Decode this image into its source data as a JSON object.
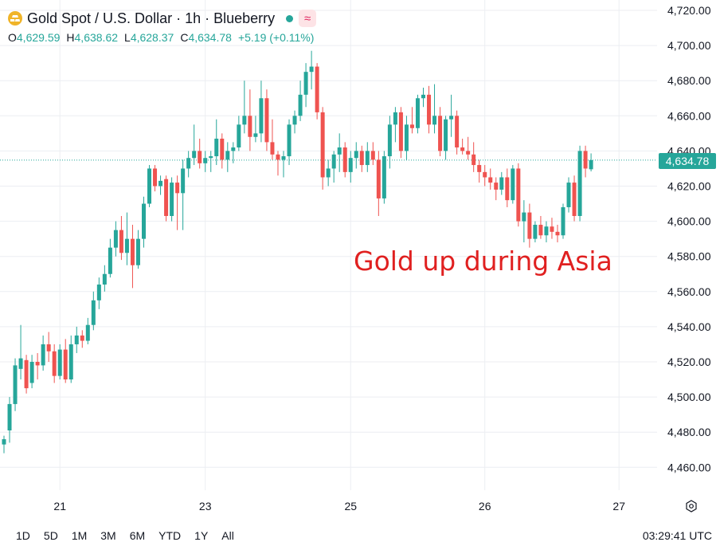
{
  "header": {
    "title": "Gold Spot / U.S. Dollar · 1h · Blueberry",
    "symbol_icon": "gold-bars-icon",
    "status_dot_color": "#26a69a",
    "badge_icon": "wave-icon",
    "ohlc": {
      "o_label": "O",
      "o_value": "4,629.59",
      "h_label": "H",
      "h_value": "4,638.62",
      "l_label": "L",
      "l_value": "4,628.37",
      "c_label": "C",
      "c_value": "4,634.78",
      "change": "+5.19 (+0.11%)"
    }
  },
  "annotation": "Gold up during Asia",
  "price_tag": "4,634.78",
  "footer": {
    "ranges": [
      "1D",
      "5D",
      "1M",
      "3M",
      "6M",
      "YTD",
      "1Y",
      "All"
    ],
    "clock": "03:29:41 UTC"
  },
  "colors": {
    "up": "#26a69a",
    "down": "#ef5350",
    "annotation": "#e02020",
    "grid": "#eceef2"
  },
  "chart_data": {
    "type": "candlestick",
    "title": "Gold Spot / U.S. Dollar · 1h · Blueberry",
    "ylim": [
      4450,
      4725
    ],
    "y_ticks": [
      "4,460.00",
      "4,480.00",
      "4,500.00",
      "4,520.00",
      "4,540.00",
      "4,560.00",
      "4,580.00",
      "4,600.00",
      "4,620.00",
      "4,640.00",
      "4,660.00",
      "4,680.00",
      "4,700.00",
      "4,720.00"
    ],
    "y_tick_values": [
      4460,
      4480,
      4500,
      4520,
      4540,
      4560,
      4580,
      4600,
      4620,
      4640,
      4660,
      4680,
      4700,
      4720
    ],
    "x_ticks": [
      "21",
      "23",
      "25",
      "26",
      "27"
    ],
    "x_tick_index": [
      10,
      36,
      62,
      86,
      110
    ],
    "last_price": 4634.78,
    "grid": true,
    "candles": [
      {
        "o": 4473,
        "h": 4478,
        "l": 4468,
        "c": 4476
      },
      {
        "o": 4481,
        "h": 4500,
        "l": 4474,
        "c": 4496
      },
      {
        "o": 4496,
        "h": 4522,
        "l": 4492,
        "c": 4518
      },
      {
        "o": 4516,
        "h": 4541,
        "l": 4510,
        "c": 4522
      },
      {
        "o": 4521,
        "h": 4524,
        "l": 4502,
        "c": 4505
      },
      {
        "o": 4508,
        "h": 4524,
        "l": 4505,
        "c": 4520
      },
      {
        "o": 4520,
        "h": 4525,
        "l": 4510,
        "c": 4518
      },
      {
        "o": 4518,
        "h": 4535,
        "l": 4515,
        "c": 4530
      },
      {
        "o": 4530,
        "h": 4537,
        "l": 4520,
        "c": 4526
      },
      {
        "o": 4526,
        "h": 4530,
        "l": 4508,
        "c": 4512
      },
      {
        "o": 4512,
        "h": 4530,
        "l": 4510,
        "c": 4527
      },
      {
        "o": 4527,
        "h": 4533,
        "l": 4508,
        "c": 4510
      },
      {
        "o": 4510,
        "h": 4535,
        "l": 4508,
        "c": 4530
      },
      {
        "o": 4530,
        "h": 4540,
        "l": 4525,
        "c": 4535
      },
      {
        "o": 4535,
        "h": 4538,
        "l": 4528,
        "c": 4532
      },
      {
        "o": 4532,
        "h": 4545,
        "l": 4530,
        "c": 4541
      },
      {
        "o": 4541,
        "h": 4560,
        "l": 4538,
        "c": 4555
      },
      {
        "o": 4555,
        "h": 4568,
        "l": 4550,
        "c": 4564
      },
      {
        "o": 4564,
        "h": 4575,
        "l": 4560,
        "c": 4570
      },
      {
        "o": 4570,
        "h": 4590,
        "l": 4568,
        "c": 4585
      },
      {
        "o": 4585,
        "h": 4600,
        "l": 4580,
        "c": 4595
      },
      {
        "o": 4595,
        "h": 4603,
        "l": 4578,
        "c": 4582
      },
      {
        "o": 4582,
        "h": 4605,
        "l": 4575,
        "c": 4590
      },
      {
        "o": 4590,
        "h": 4598,
        "l": 4562,
        "c": 4575
      },
      {
        "o": 4575,
        "h": 4595,
        "l": 4573,
        "c": 4590
      },
      {
        "o": 4590,
        "h": 4614,
        "l": 4585,
        "c": 4610
      },
      {
        "o": 4610,
        "h": 4632,
        "l": 4608,
        "c": 4630
      },
      {
        "o": 4630,
        "h": 4632,
        "l": 4617,
        "c": 4620
      },
      {
        "o": 4620,
        "h": 4626,
        "l": 4615,
        "c": 4623
      },
      {
        "o": 4624,
        "h": 4626,
        "l": 4600,
        "c": 4603
      },
      {
        "o": 4603,
        "h": 4625,
        "l": 4600,
        "c": 4622
      },
      {
        "o": 4622,
        "h": 4626,
        "l": 4595,
        "c": 4616
      },
      {
        "o": 4616,
        "h": 4635,
        "l": 4595,
        "c": 4630
      },
      {
        "o": 4630,
        "h": 4640,
        "l": 4625,
        "c": 4636
      },
      {
        "o": 4636,
        "h": 4655,
        "l": 4632,
        "c": 4640
      },
      {
        "o": 4640,
        "h": 4647,
        "l": 4630,
        "c": 4633
      },
      {
        "o": 4633,
        "h": 4640,
        "l": 4628,
        "c": 4636
      },
      {
        "o": 4636,
        "h": 4640,
        "l": 4628,
        "c": 4637
      },
      {
        "o": 4637,
        "h": 4658,
        "l": 4632,
        "c": 4647
      },
      {
        "o": 4647,
        "h": 4650,
        "l": 4630,
        "c": 4635
      },
      {
        "o": 4635,
        "h": 4645,
        "l": 4628,
        "c": 4640
      },
      {
        "o": 4640,
        "h": 4645,
        "l": 4633,
        "c": 4642
      },
      {
        "o": 4642,
        "h": 4660,
        "l": 4640,
        "c": 4655
      },
      {
        "o": 4655,
        "h": 4680,
        "l": 4650,
        "c": 4660
      },
      {
        "o": 4660,
        "h": 4675,
        "l": 4640,
        "c": 4648
      },
      {
        "o": 4648,
        "h": 4660,
        "l": 4645,
        "c": 4650
      },
      {
        "o": 4650,
        "h": 4680,
        "l": 4645,
        "c": 4670
      },
      {
        "o": 4670,
        "h": 4675,
        "l": 4640,
        "c": 4645
      },
      {
        "o": 4645,
        "h": 4658,
        "l": 4635,
        "c": 4638
      },
      {
        "o": 4638,
        "h": 4640,
        "l": 4626,
        "c": 4635
      },
      {
        "o": 4635,
        "h": 4640,
        "l": 4625,
        "c": 4637
      },
      {
        "o": 4637,
        "h": 4658,
        "l": 4632,
        "c": 4655
      },
      {
        "o": 4655,
        "h": 4663,
        "l": 4650,
        "c": 4660
      },
      {
        "o": 4660,
        "h": 4680,
        "l": 4657,
        "c": 4672
      },
      {
        "o": 4672,
        "h": 4690,
        "l": 4665,
        "c": 4685
      },
      {
        "o": 4685,
        "h": 4697,
        "l": 4675,
        "c": 4688
      },
      {
        "o": 4688,
        "h": 4690,
        "l": 4658,
        "c": 4662
      },
      {
        "o": 4662,
        "h": 4665,
        "l": 4618,
        "c": 4625
      },
      {
        "o": 4625,
        "h": 4635,
        "l": 4620,
        "c": 4630
      },
      {
        "o": 4630,
        "h": 4640,
        "l": 4622,
        "c": 4638
      },
      {
        "o": 4638,
        "h": 4650,
        "l": 4628,
        "c": 4642
      },
      {
        "o": 4642,
        "h": 4645,
        "l": 4625,
        "c": 4628
      },
      {
        "o": 4628,
        "h": 4640,
        "l": 4622,
        "c": 4636
      },
      {
        "o": 4636,
        "h": 4645,
        "l": 4630,
        "c": 4640
      },
      {
        "o": 4640,
        "h": 4643,
        "l": 4628,
        "c": 4632
      },
      {
        "o": 4632,
        "h": 4645,
        "l": 4628,
        "c": 4640
      },
      {
        "o": 4640,
        "h": 4645,
        "l": 4632,
        "c": 4635
      },
      {
        "o": 4635,
        "h": 4640,
        "l": 4603,
        "c": 4613
      },
      {
        "o": 4613,
        "h": 4640,
        "l": 4610,
        "c": 4637
      },
      {
        "o": 4637,
        "h": 4660,
        "l": 4630,
        "c": 4655
      },
      {
        "o": 4655,
        "h": 4665,
        "l": 4645,
        "c": 4662
      },
      {
        "o": 4662,
        "h": 4665,
        "l": 4636,
        "c": 4640
      },
      {
        "o": 4640,
        "h": 4660,
        "l": 4635,
        "c": 4655
      },
      {
        "o": 4655,
        "h": 4665,
        "l": 4650,
        "c": 4653
      },
      {
        "o": 4653,
        "h": 4672,
        "l": 4650,
        "c": 4670
      },
      {
        "o": 4670,
        "h": 4676,
        "l": 4665,
        "c": 4672
      },
      {
        "o": 4672,
        "h": 4677,
        "l": 4650,
        "c": 4655
      },
      {
        "o": 4655,
        "h": 4678,
        "l": 4650,
        "c": 4660
      },
      {
        "o": 4660,
        "h": 4665,
        "l": 4637,
        "c": 4640
      },
      {
        "o": 4640,
        "h": 4660,
        "l": 4635,
        "c": 4658
      },
      {
        "o": 4658,
        "h": 4672,
        "l": 4648,
        "c": 4660
      },
      {
        "o": 4660,
        "h": 4663,
        "l": 4638,
        "c": 4642
      },
      {
        "o": 4642,
        "h": 4647,
        "l": 4638,
        "c": 4640
      },
      {
        "o": 4640,
        "h": 4648,
        "l": 4635,
        "c": 4638
      },
      {
        "o": 4638,
        "h": 4645,
        "l": 4628,
        "c": 4632
      },
      {
        "o": 4632,
        "h": 4635,
        "l": 4622,
        "c": 4628
      },
      {
        "o": 4628,
        "h": 4632,
        "l": 4620,
        "c": 4625
      },
      {
        "o": 4625,
        "h": 4630,
        "l": 4618,
        "c": 4622
      },
      {
        "o": 4622,
        "h": 4625,
        "l": 4612,
        "c": 4618
      },
      {
        "o": 4618,
        "h": 4628,
        "l": 4615,
        "c": 4625
      },
      {
        "o": 4625,
        "h": 4630,
        "l": 4608,
        "c": 4612
      },
      {
        "o": 4612,
        "h": 4632,
        "l": 4610,
        "c": 4630
      },
      {
        "o": 4630,
        "h": 4633,
        "l": 4597,
        "c": 4600
      },
      {
        "o": 4600,
        "h": 4612,
        "l": 4588,
        "c": 4605
      },
      {
        "o": 4605,
        "h": 4610,
        "l": 4585,
        "c": 4590
      },
      {
        "o": 4590,
        "h": 4600,
        "l": 4588,
        "c": 4598
      },
      {
        "o": 4598,
        "h": 4603,
        "l": 4590,
        "c": 4592
      },
      {
        "o": 4592,
        "h": 4600,
        "l": 4588,
        "c": 4597
      },
      {
        "o": 4597,
        "h": 4602,
        "l": 4590,
        "c": 4594
      },
      {
        "o": 4594,
        "h": 4598,
        "l": 4588,
        "c": 4592
      },
      {
        "o": 4592,
        "h": 4610,
        "l": 4590,
        "c": 4608
      },
      {
        "o": 4608,
        "h": 4625,
        "l": 4605,
        "c": 4622
      },
      {
        "o": 4622,
        "h": 4626,
        "l": 4600,
        "c": 4603
      },
      {
        "o": 4603,
        "h": 4643,
        "l": 4600,
        "c": 4640
      },
      {
        "o": 4640,
        "h": 4643,
        "l": 4625,
        "c": 4630
      },
      {
        "o": 4629.59,
        "h": 4638.62,
        "l": 4628.37,
        "c": 4634.78
      }
    ]
  }
}
